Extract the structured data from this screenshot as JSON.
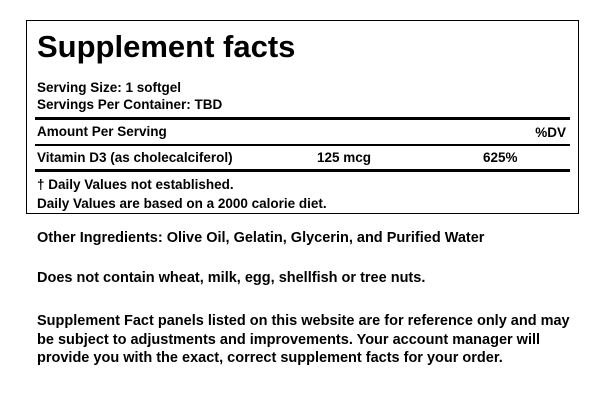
{
  "label": {
    "title": "Supplement facts",
    "serving_size": "Serving Size: 1 softgel",
    "servings_per_container": "Servings Per Container: TBD",
    "amount_header": "Amount Per Serving",
    "dv_header": "%DV",
    "rows": [
      [
        "Vitamin D3 (as cholecalciferol)",
        "125 mcg",
        "625%"
      ]
    ],
    "footnotes": [
      "† Daily Values not established.",
      "Daily Values are based on a 2000 calorie diet."
    ]
  },
  "notes": [
    "Other Ingredients: Olive Oil, Gelatin, Glycerin, and Purified Water",
    "Does not contain wheat, milk, egg, shellfish or tree nuts.",
    "Supplement Fact panels listed on this website are for reference only and may be subject to adjustments and improvements. Your account manager will provide you with the exact, correct supplement facts for your order."
  ]
}
